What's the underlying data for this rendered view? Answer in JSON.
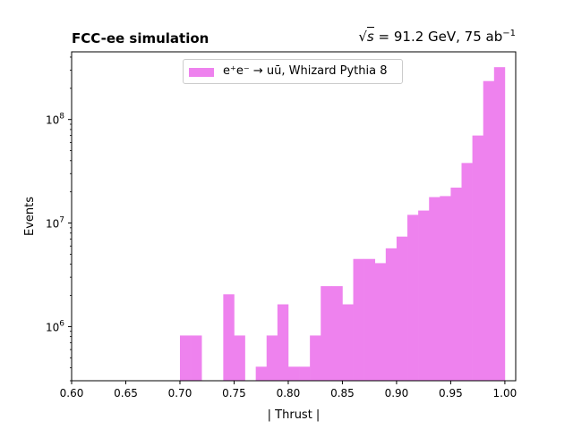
{
  "colors": {
    "bar": "#ee82ee",
    "axis": "#000000"
  },
  "header": {
    "left_title": "FCC-ee simulation",
    "right_title": "= 91.2 GeV, 75 ab",
    "right_title_sqrt": "s",
    "right_title_exp": "−1"
  },
  "legend": {
    "label": "e⁺e⁻ → uū, Whizard Pythia 8"
  },
  "chart_data": {
    "type": "bar",
    "title": "FCC-ee simulation",
    "subtitle": "√s = 91.2 GeV, 75 ab⁻¹",
    "xlabel": "| Thrust |",
    "ylabel": "Events",
    "xlim": [
      0.6,
      1.01
    ],
    "ylim": [
      300000,
      450000000
    ],
    "yscale": "log",
    "grid": false,
    "legend_position": "top-center",
    "xticks": [
      "0.60",
      "0.65",
      "0.70",
      "0.75",
      "0.80",
      "0.85",
      "0.90",
      "0.95",
      "1.00"
    ],
    "yticks": [
      {
        "value": 1000000,
        "label": "10",
        "exp": "6"
      },
      {
        "value": 10000000,
        "label": "10",
        "exp": "7"
      },
      {
        "value": 100000000,
        "label": "10",
        "exp": "8"
      }
    ],
    "bin_width": 0.01,
    "series": [
      {
        "name": "e⁺e⁻ → uū, Whizard Pythia 8",
        "bins": [
          {
            "x": 0.7,
            "value": 820000
          },
          {
            "x": 0.71,
            "value": 820000
          },
          {
            "x": 0.74,
            "value": 2050000
          },
          {
            "x": 0.75,
            "value": 820000
          },
          {
            "x": 0.77,
            "value": 410000
          },
          {
            "x": 0.78,
            "value": 820000
          },
          {
            "x": 0.79,
            "value": 1640000
          },
          {
            "x": 0.8,
            "value": 410000
          },
          {
            "x": 0.81,
            "value": 410000
          },
          {
            "x": 0.82,
            "value": 820000
          },
          {
            "x": 0.83,
            "value": 2460000
          },
          {
            "x": 0.84,
            "value": 2460000
          },
          {
            "x": 0.85,
            "value": 1640000
          },
          {
            "x": 0.86,
            "value": 4500000
          },
          {
            "x": 0.87,
            "value": 4500000
          },
          {
            "x": 0.88,
            "value": 4100000
          },
          {
            "x": 0.89,
            "value": 5700000
          },
          {
            "x": 0.9,
            "value": 7400000
          },
          {
            "x": 0.91,
            "value": 12000000
          },
          {
            "x": 0.92,
            "value": 13200000
          },
          {
            "x": 0.93,
            "value": 17800000
          },
          {
            "x": 0.94,
            "value": 18200000
          },
          {
            "x": 0.95,
            "value": 22000000
          },
          {
            "x": 0.96,
            "value": 38000000
          },
          {
            "x": 0.97,
            "value": 70000000
          },
          {
            "x": 0.98,
            "value": 235000000
          },
          {
            "x": 0.99,
            "value": 320000000
          }
        ]
      }
    ]
  }
}
